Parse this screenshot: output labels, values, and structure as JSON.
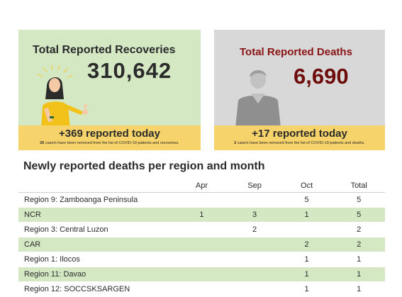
{
  "recoveries": {
    "title": "Total Reported Recoveries",
    "total": "310,642",
    "today": "+369 reported today",
    "note_count": "26",
    "note_text": " case/s have been removed from the list of COVID-19 patients and recoveries."
  },
  "deaths": {
    "title": "Total Reported Deaths",
    "total": "6,690",
    "today": "+17 reported today",
    "note_count": "2",
    "note_text": " case/s have been removed from the list of COVID-19 patients and deaths."
  },
  "section": {
    "title": "Newly reported deaths per region and month"
  },
  "table": {
    "headers": [
      "",
      "Apr",
      "Sep",
      "Oct",
      "Total"
    ],
    "rows": [
      {
        "region": "Region 9: Zamboanga Peninsula",
        "apr": "",
        "sep": "",
        "oct": "5",
        "total": "5"
      },
      {
        "region": "NCR",
        "apr": "1",
        "sep": "3",
        "oct": "1",
        "total": "5"
      },
      {
        "region": "Region 3: Central Luzon",
        "apr": "",
        "sep": "2",
        "oct": "",
        "total": "2"
      },
      {
        "region": "CAR",
        "apr": "",
        "sep": "",
        "oct": "2",
        "total": "2"
      },
      {
        "region": "Region 1: Ilocos",
        "apr": "",
        "sep": "",
        "oct": "1",
        "total": "1"
      },
      {
        "region": "Region 11: Davao",
        "apr": "",
        "sep": "",
        "oct": "1",
        "total": "1"
      },
      {
        "region": "Region 12: SOCCSKSARGEN",
        "apr": "",
        "sep": "",
        "oct": "1",
        "total": "1"
      }
    ]
  },
  "colors": {
    "recoveries_bg": "#d4e8c4",
    "deaths_bg": "#d8d8d8",
    "band": "#f6d46b",
    "deaths_number": "#6e0b0b"
  },
  "icons": {
    "recoveries": "celebrating-woman-illustration",
    "deaths": "grey-person-silhouette"
  }
}
